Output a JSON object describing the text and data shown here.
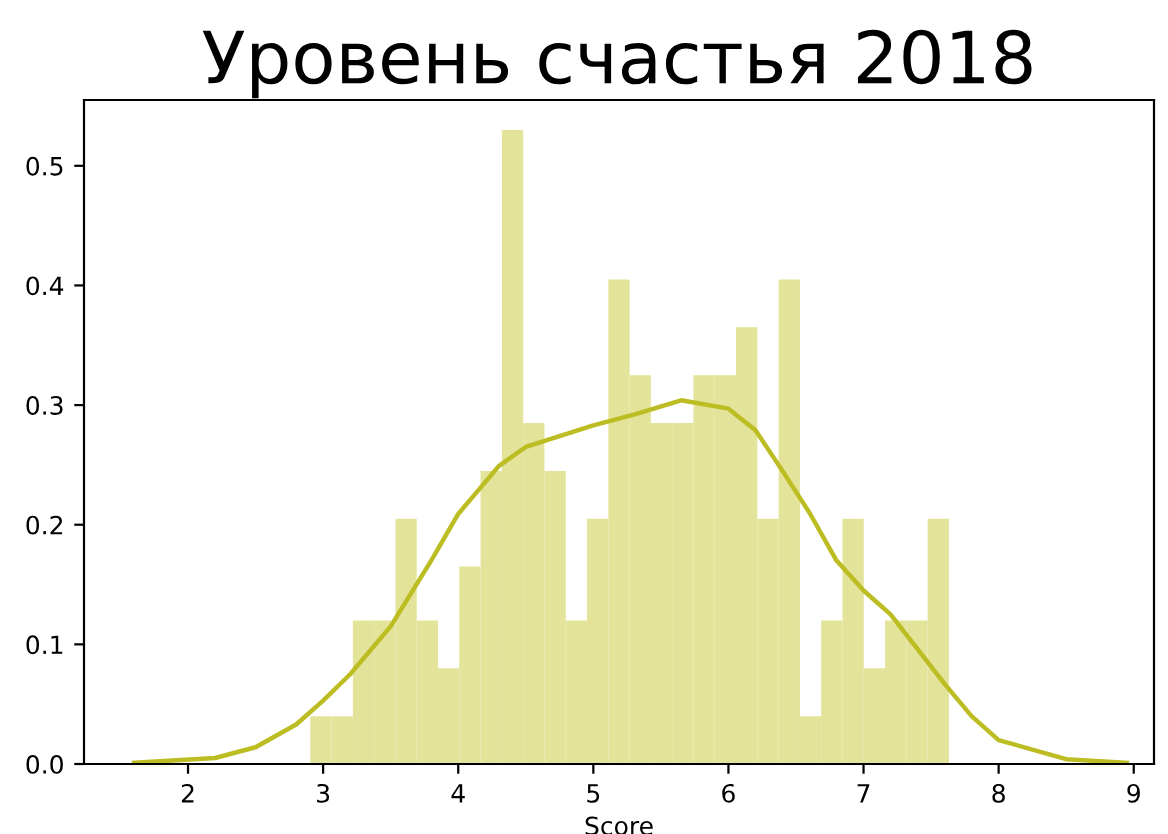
{
  "chart_data": {
    "type": "histogram",
    "title": "Уровень счастья 2018",
    "xlabel": "Score",
    "bins": [
      2.905,
      3.0626,
      3.2201,
      3.3777,
      3.5353,
      3.6928,
      3.8504,
      4.008,
      4.1655,
      4.3231,
      4.4807,
      4.6382,
      4.7958,
      4.9534,
      5.1109,
      5.2685,
      5.4261,
      5.5836,
      5.7412,
      5.8988,
      6.0563,
      6.2139,
      6.3715,
      6.529,
      6.6866,
      6.8442,
      7.0017,
      7.1593,
      7.3169,
      7.4744,
      7.632
    ],
    "values": [
      0.04,
      0.04,
      0.12,
      0.12,
      0.205,
      0.12,
      0.08,
      0.165,
      0.245,
      0.53,
      0.285,
      0.245,
      0.12,
      0.205,
      0.405,
      0.325,
      0.285,
      0.285,
      0.325,
      0.325,
      0.365,
      0.205,
      0.405,
      0.04,
      0.12,
      0.205,
      0.08,
      0.12,
      0.12,
      0.205
    ],
    "color": "#e3e399",
    "series": [
      {
        "type": "line",
        "color": "#bcbd22",
        "x": [
          1.6,
          2.2,
          2.5,
          2.8,
          3.0,
          3.2,
          3.5,
          3.8,
          4.0,
          4.3,
          4.5,
          5.0,
          5.3,
          5.65,
          6.0,
          6.2,
          6.4,
          6.6,
          6.8,
          7.0,
          7.2,
          7.6,
          7.8,
          8.0,
          8.5,
          8.95
        ],
        "values": [
          0.001,
          0.005,
          0.014,
          0.033,
          0.053,
          0.075,
          0.115,
          0.17,
          0.209,
          0.249,
          0.265,
          0.283,
          0.292,
          0.304,
          0.297,
          0.279,
          0.245,
          0.21,
          0.17,
          0.145,
          0.125,
          0.067,
          0.04,
          0.02,
          0.004,
          0.001
        ]
      }
    ],
    "xlim": [
      1.23,
      9.15
    ],
    "ylim": [
      0,
      0.555
    ],
    "xticks": [
      2,
      3,
      4,
      5,
      6,
      7,
      8,
      9
    ],
    "yticks": [
      {
        "value": 0,
        "label": "0.0"
      },
      0.1,
      0.2,
      0.3,
      0.4,
      0.5
    ],
    "grid": false,
    "legend": false
  }
}
